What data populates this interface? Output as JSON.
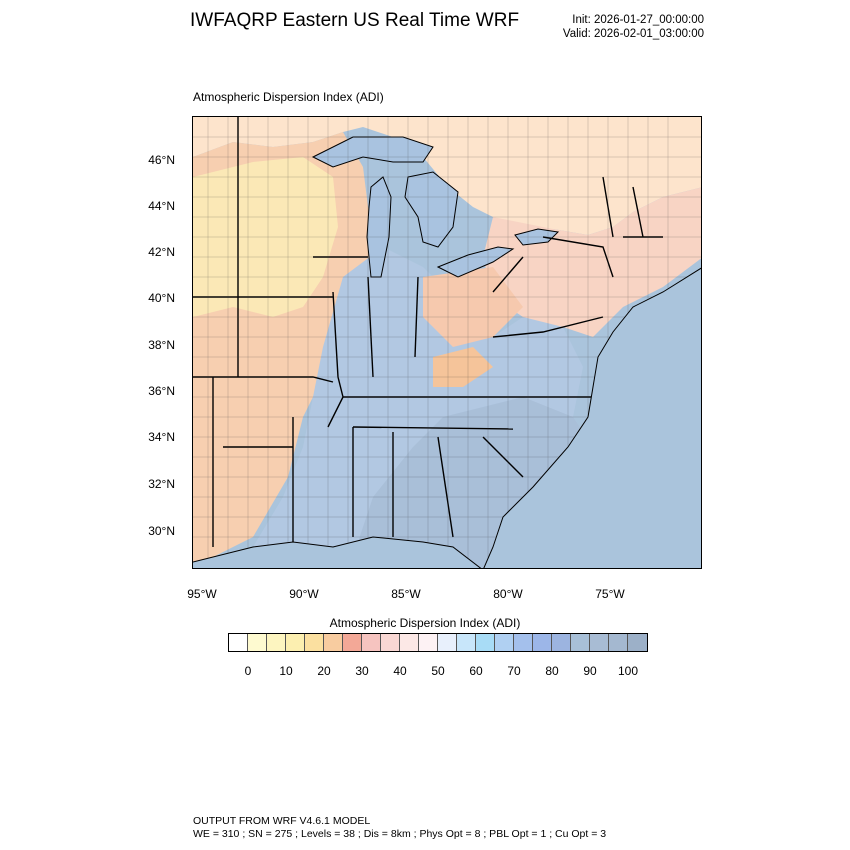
{
  "header": {
    "title": "IWFAQRP Eastern US Real Time WRF",
    "init": "Init: 2026-01-27_00:00:00",
    "valid": "Valid: 2026-02-01_03:00:00"
  },
  "map": {
    "title": "Atmospheric Dispersion Index   (ADI)",
    "lat_labels": [
      "46°N",
      "44°N",
      "42°N",
      "40°N",
      "38°N",
      "36°N",
      "34°N",
      "32°N",
      "30°N"
    ],
    "lon_labels": [
      "95°W",
      "90°W",
      "85°W",
      "80°W",
      "75°W"
    ],
    "colors": {
      "ocean": "#aac4dc",
      "land_high": "#a9c3e0",
      "land_mid": "#fde0cc",
      "land_low": "#fbe8b6",
      "land_orange": "#f7c9a0",
      "lake": "#a9c3e0",
      "boundary": "#000000"
    }
  },
  "colorbar": {
    "title": "Atmospheric Dispersion Index  (ADI)",
    "colors": [
      "#ffffff",
      "#fefad0",
      "#fdf5c0",
      "#fcefb0",
      "#fbe0a0",
      "#f8cca0",
      "#f3a897",
      "#f6c4c0",
      "#f9d8d4",
      "#fce8e6",
      "#fdf2f4",
      "#e8f0fc",
      "#c8e6fa",
      "#a8dcf6",
      "#b0d0f2",
      "#a4c0ec",
      "#9cb6e8",
      "#9cb4e0",
      "#a8c0d8",
      "#a8bcd4",
      "#a4b8d0",
      "#9cb0c8"
    ],
    "labels": [
      "0",
      "10",
      "20",
      "30",
      "40",
      "50",
      "60",
      "70",
      "80",
      "90",
      "100"
    ]
  },
  "footer": {
    "line1": "OUTPUT FROM WRF V4.6.1 MODEL",
    "line2": "WE = 310 ; SN = 275 ; Levels = 38 ; Dis = 8km ; Phys Opt = 8 ; PBL Opt = 1 ; Cu Opt = 3"
  }
}
